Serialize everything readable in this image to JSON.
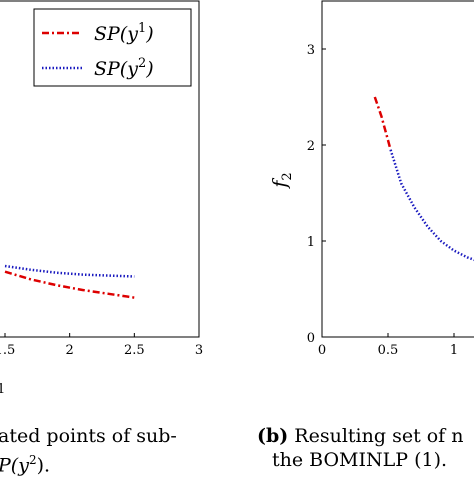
{
  "chart_data": [
    {
      "panel": "a",
      "type": "line",
      "x_tick_labels": [
        "1.5",
        "2",
        "2.5",
        "3"
      ],
      "x_tick_values": [
        1.5,
        2,
        2.5,
        3
      ],
      "xlim": [
        1.5,
        3
      ],
      "series": [
        {
          "name": "SP(y1)",
          "color": "#dd0000",
          "style": "dash-dot",
          "x": [
            1.5,
            1.7,
            1.9,
            2.1,
            2.3,
            2.5
          ],
          "y": [
            0.68,
            0.6,
            0.54,
            0.49,
            0.45,
            0.41
          ]
        },
        {
          "name": "SP(y2)",
          "color": "#1a1abf",
          "style": "dotted",
          "x": [
            1.5,
            1.7,
            1.9,
            2.1,
            2.3,
            2.5
          ],
          "y": [
            0.74,
            0.7,
            0.67,
            0.65,
            0.64,
            0.63
          ]
        }
      ],
      "legend": {
        "placement": "top-right",
        "entries": [
          {
            "label_base": "SP(y",
            "superscript": "1",
            "label_end": ")"
          },
          {
            "label_base": "SP(y",
            "superscript": "2",
            "label_end": ")"
          }
        ]
      },
      "x_axis_fragment": "1"
    },
    {
      "panel": "b",
      "type": "line",
      "ylabel": "f",
      "ylabel_subscript": "2",
      "xlim": [
        0,
        1.5
      ],
      "ylim": [
        0,
        3.5
      ],
      "x_tick_labels": [
        "0",
        "0.5",
        "1"
      ],
      "x_tick_values": [
        0,
        0.5,
        1
      ],
      "y_tick_labels": [
        "0",
        "1",
        "2",
        "3"
      ],
      "y_tick_values": [
        0,
        1,
        2,
        3
      ],
      "series": [
        {
          "name": "SP(y1)",
          "color": "#dd0000",
          "style": "dash-dot",
          "x": [
            0.4,
            0.45,
            0.5,
            0.52
          ],
          "y": [
            2.5,
            2.3,
            2.05,
            1.95
          ]
        },
        {
          "name": "SP(y2)",
          "color": "#1a1abf",
          "style": "dotted",
          "x": [
            0.52,
            0.6,
            0.7,
            0.8,
            0.9,
            1.0,
            1.1,
            1.2
          ],
          "y": [
            1.95,
            1.6,
            1.35,
            1.15,
            1.0,
            0.9,
            0.83,
            0.78
          ]
        }
      ]
    }
  ],
  "captions": {
    "a_line1": "ated points of sub-",
    "a_line2_prefix": "P(y",
    "a_line2_sup": "2",
    "a_line2_suffix": ").",
    "b_line1_label": "(b)",
    "b_line1_text": " Resulting set of n",
    "b_line2": "the BOMINLP (1)."
  }
}
